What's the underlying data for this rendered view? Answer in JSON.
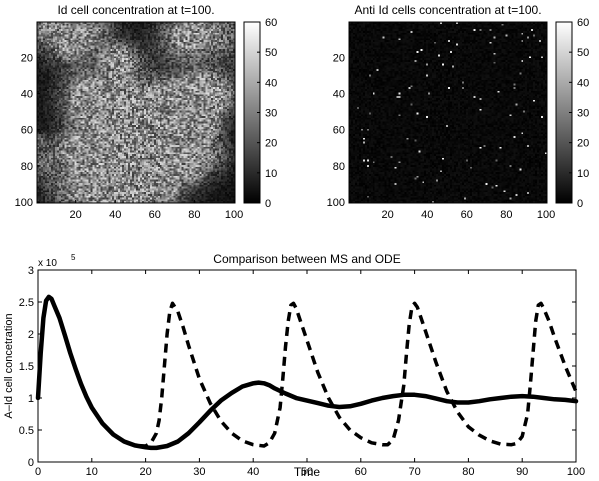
{
  "chart_data": [
    {
      "type": "heatmap",
      "title": "Id cell concentration at t=100.",
      "x_ticks": [
        20,
        40,
        60,
        80,
        100
      ],
      "y_ticks": [
        20,
        40,
        60,
        80,
        100
      ],
      "xlim": [
        1,
        100
      ],
      "ylim": [
        1,
        100
      ],
      "colorbar": {
        "range": [
          0,
          60
        ],
        "ticks": [
          0,
          10,
          20,
          30,
          40,
          50,
          60
        ],
        "colormap": "gray"
      },
      "grid_size": [
        100,
        100
      ],
      "value_distribution": {
        "mean": 14,
        "max": 60
      }
    },
    {
      "type": "heatmap",
      "title": "Anti Id cells concentration at t=100.",
      "x_ticks": [
        20,
        40,
        60,
        80,
        100
      ],
      "y_ticks": [
        20,
        40,
        60,
        80,
        100
      ],
      "xlim": [
        1,
        100
      ],
      "ylim": [
        1,
        100
      ],
      "colorbar": {
        "range": [
          0,
          60
        ],
        "ticks": [
          0,
          10,
          20,
          30,
          40,
          50,
          60
        ],
        "colormap": "gray"
      },
      "grid_size": [
        100,
        100
      ],
      "value_distribution": {
        "mean": 3,
        "max": 60
      }
    },
    {
      "type": "line",
      "title": "Comparison between MS and ODE",
      "xlabel": "Time",
      "ylabel": "A–Id cell concetration",
      "y_multiplier": "x 10",
      "y_exponent": "5",
      "xlim": [
        0,
        100
      ],
      "ylim": [
        0,
        3
      ],
      "x_ticks": [
        0,
        10,
        20,
        30,
        40,
        50,
        60,
        70,
        80,
        90,
        100
      ],
      "y_ticks": [
        0,
        0.5,
        1,
        1.5,
        2,
        2.5,
        3
      ],
      "y_tick_labels": [
        "0",
        "0.5",
        "1",
        "1.5",
        "2",
        "2.5",
        "3"
      ],
      "series": [
        {
          "style": "solid-thick",
          "x": [
            0,
            0.5,
            1,
            1.5,
            2,
            2.5,
            3,
            4,
            5,
            6,
            7,
            8,
            9,
            10,
            12,
            14,
            16,
            18,
            20,
            21,
            22,
            24,
            26,
            28,
            30,
            32,
            34,
            36,
            38,
            40,
            41,
            42,
            43,
            44,
            46,
            48,
            50,
            52,
            54,
            56,
            58,
            60,
            62,
            64,
            66,
            68,
            70,
            72,
            74,
            76,
            78,
            80,
            82,
            84,
            86,
            88,
            90,
            92,
            94,
            96,
            98,
            100
          ],
          "y": [
            1.0,
            1.7,
            2.25,
            2.52,
            2.58,
            2.55,
            2.45,
            2.25,
            1.98,
            1.7,
            1.45,
            1.22,
            1.02,
            0.85,
            0.6,
            0.43,
            0.32,
            0.26,
            0.23,
            0.22,
            0.22,
            0.25,
            0.32,
            0.45,
            0.62,
            0.8,
            0.96,
            1.08,
            1.18,
            1.23,
            1.24,
            1.23,
            1.2,
            1.15,
            1.07,
            1.0,
            0.96,
            0.92,
            0.88,
            0.86,
            0.87,
            0.91,
            0.96,
            1.0,
            1.03,
            1.05,
            1.05,
            1.03,
            0.99,
            0.95,
            0.93,
            0.93,
            0.95,
            0.98,
            1.0,
            1.02,
            1.03,
            1.02,
            1.0,
            0.98,
            0.97,
            0.95
          ]
        },
        {
          "style": "dashed-thick",
          "x": [
            0,
            0.5,
            1,
            1.5,
            2,
            2.5,
            3,
            4,
            5,
            6,
            7,
            8,
            9,
            10,
            12,
            14,
            16,
            18,
            20,
            21,
            22,
            22.5,
            23,
            23.5,
            24,
            24.5,
            25,
            26,
            27,
            28,
            30,
            32,
            34,
            36,
            38,
            40,
            42,
            43,
            44,
            45,
            45.5,
            46,
            46.5,
            47,
            47.5,
            48,
            49,
            50,
            52,
            54,
            56,
            58,
            60,
            62,
            64,
            65,
            66,
            67,
            68,
            68.5,
            69,
            69.5,
            70,
            70.5,
            71,
            72,
            74,
            76,
            78,
            80,
            82,
            84,
            86,
            88,
            89,
            90,
            91,
            91.5,
            92,
            92.5,
            93,
            93.5,
            94,
            95,
            96,
            98,
            100
          ],
          "y": [
            1.0,
            1.7,
            2.25,
            2.52,
            2.58,
            2.55,
            2.45,
            2.25,
            1.98,
            1.7,
            1.45,
            1.22,
            1.02,
            0.85,
            0.6,
            0.43,
            0.32,
            0.26,
            0.25,
            0.3,
            0.45,
            0.65,
            1.0,
            1.5,
            2.0,
            2.35,
            2.48,
            2.35,
            2.1,
            1.82,
            1.3,
            0.92,
            0.64,
            0.45,
            0.33,
            0.27,
            0.25,
            0.3,
            0.45,
            0.85,
            1.3,
            1.8,
            2.2,
            2.45,
            2.48,
            2.4,
            2.15,
            1.9,
            1.4,
            1.0,
            0.7,
            0.5,
            0.38,
            0.3,
            0.27,
            0.27,
            0.35,
            0.65,
            1.2,
            1.7,
            2.15,
            2.42,
            2.48,
            2.42,
            2.3,
            2.05,
            1.55,
            1.1,
            0.78,
            0.55,
            0.42,
            0.33,
            0.28,
            0.27,
            0.29,
            0.4,
            0.75,
            1.2,
            1.7,
            2.2,
            2.45,
            2.48,
            2.4,
            2.2,
            1.95,
            1.5,
            1.1
          ]
        }
      ]
    }
  ]
}
